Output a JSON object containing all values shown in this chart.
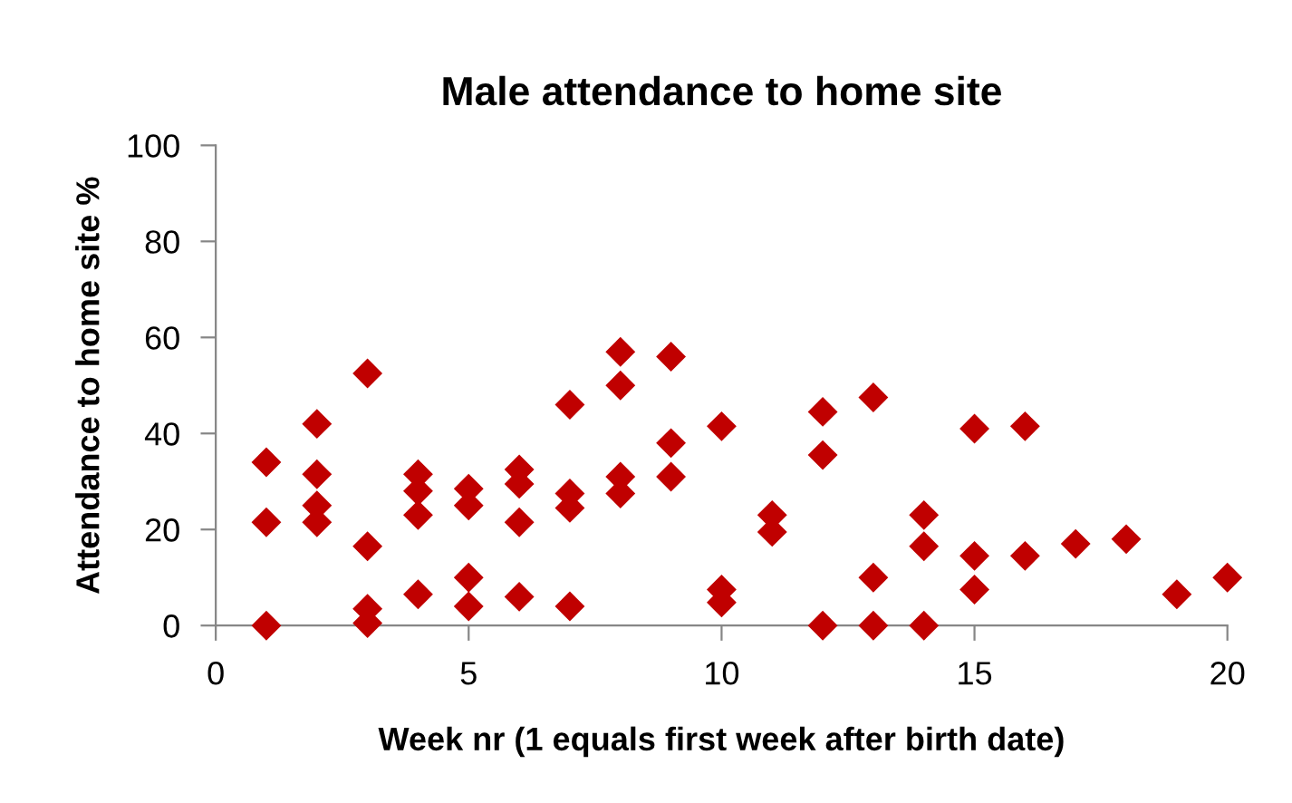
{
  "chart_data": {
    "type": "scatter",
    "title": "Male attendance to home site",
    "xlabel": "Week nr (1 equals first week after birth date)",
    "ylabel": "Attendance to home site %",
    "x": [
      1,
      1,
      1,
      2,
      2,
      2,
      2,
      3,
      3,
      3,
      3,
      4,
      4,
      4,
      4,
      5,
      5,
      5,
      5,
      6,
      6,
      6,
      6,
      7,
      7,
      7,
      7,
      8,
      8,
      8,
      8,
      9,
      9,
      9,
      10,
      10,
      10,
      11,
      11,
      12,
      12,
      12,
      13,
      13,
      13,
      14,
      14,
      14,
      15,
      15,
      15,
      16,
      16,
      17,
      18,
      19,
      20
    ],
    "values": [
      34,
      21.5,
      0,
      42,
      31.5,
      25,
      21.5,
      52.5,
      16.5,
      3.5,
      0.5,
      31.5,
      28,
      23,
      6.5,
      28.5,
      25,
      10,
      4,
      32.5,
      29.5,
      21.5,
      6,
      46,
      27.5,
      24.5,
      4,
      57,
      50,
      31,
      27.5,
      56,
      38,
      31,
      41.5,
      7.5,
      4.8,
      23,
      19.5,
      44.5,
      35.5,
      0,
      47.5,
      10,
      0,
      23,
      16.5,
      0,
      41,
      14.5,
      7.5,
      41.5,
      14.5,
      17,
      18,
      6.5,
      10
    ],
    "color": "#c00000",
    "marker": "diamond",
    "xlim": [
      0,
      20
    ],
    "ylim": [
      0,
      100
    ],
    "xticks": [
      0,
      5,
      10,
      15,
      20
    ],
    "yticks": [
      0,
      20,
      40,
      60,
      80,
      100
    ],
    "grid": false,
    "legend": false
  }
}
